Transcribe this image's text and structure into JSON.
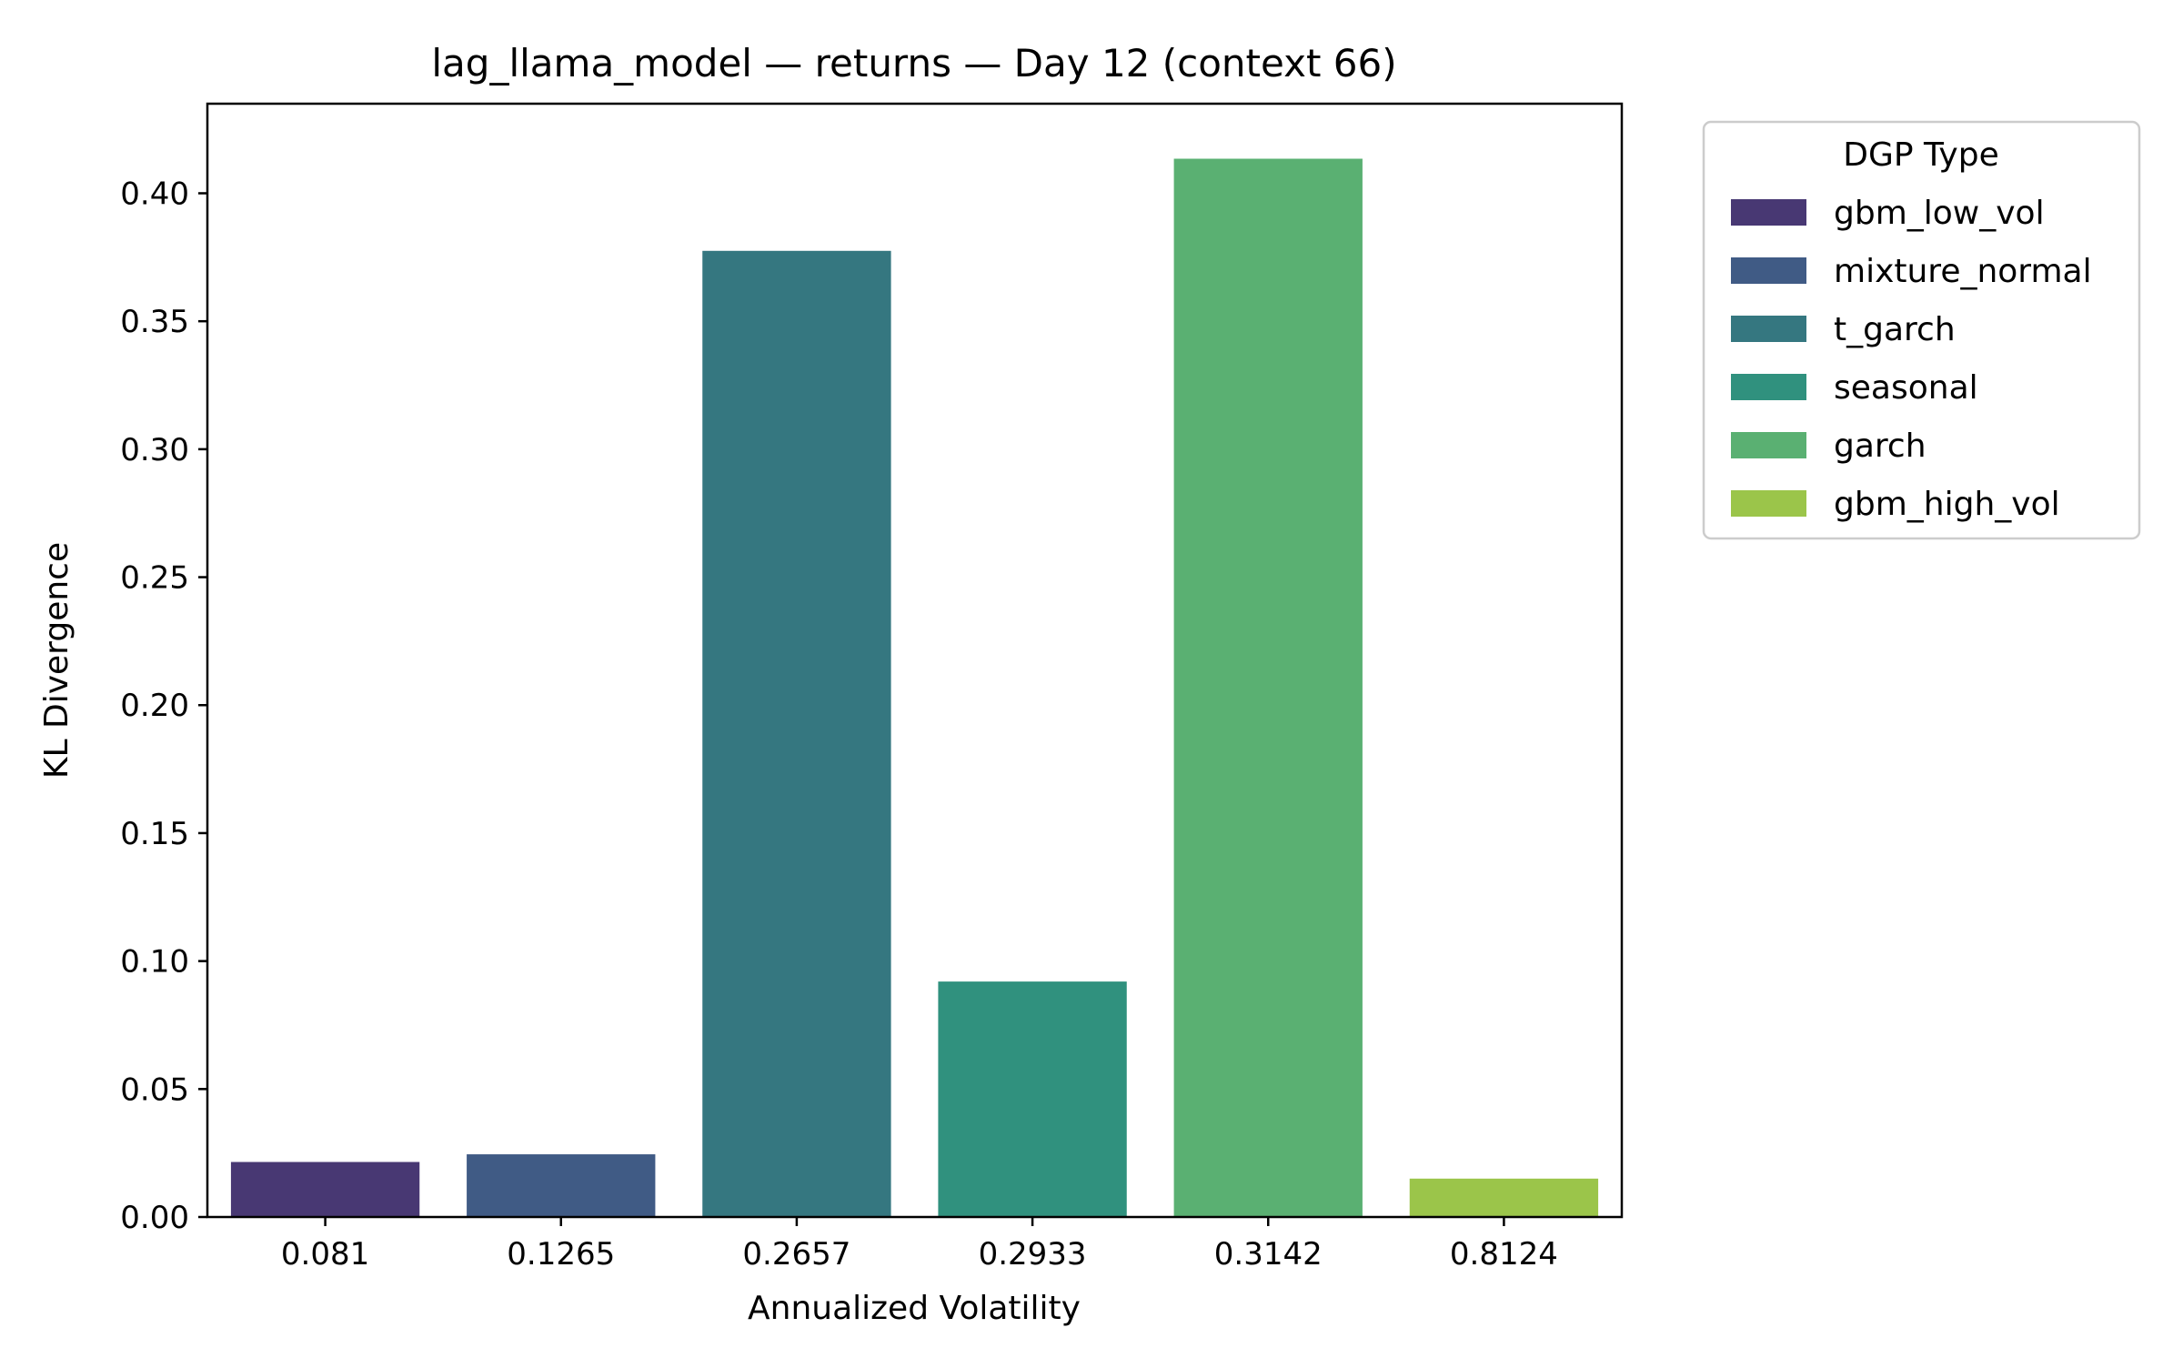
{
  "chart_data": {
    "type": "bar",
    "title": "lag_llama_model — returns — Day 12 (context 66)",
    "xlabel": "Annualized Volatility",
    "ylabel": "KL Divergence",
    "categories": [
      "0.081",
      "0.1265",
      "0.2657",
      "0.2933",
      "0.3142",
      "0.8124"
    ],
    "values": [
      0.0215,
      0.0245,
      0.3775,
      0.092,
      0.4135,
      0.015
    ],
    "bar_series": [
      "gbm_low_vol",
      "mixture_normal",
      "t_garch",
      "seasonal",
      "garch",
      "gbm_high_vol"
    ],
    "ylim": [
      0,
      0.435
    ],
    "yticks": [
      0.0,
      0.05,
      0.1,
      0.15,
      0.2,
      0.25,
      0.3,
      0.35,
      0.4
    ],
    "ytick_labels": [
      "0.00",
      "0.05",
      "0.10",
      "0.15",
      "0.20",
      "0.25",
      "0.30",
      "0.35",
      "0.40"
    ],
    "grid": false,
    "legend": {
      "title": "DGP Type",
      "placement": "outside-upper-right",
      "entries": [
        {
          "name": "gbm_low_vol",
          "color": "#483873"
        },
        {
          "name": "mixture_normal",
          "color": "#405b85"
        },
        {
          "name": "t_garch",
          "color": "#357780"
        },
        {
          "name": "seasonal",
          "color": "#30917e"
        },
        {
          "name": "garch",
          "color": "#5ab072"
        },
        {
          "name": "gbm_high_vol",
          "color": "#9bc54a"
        }
      ]
    }
  }
}
